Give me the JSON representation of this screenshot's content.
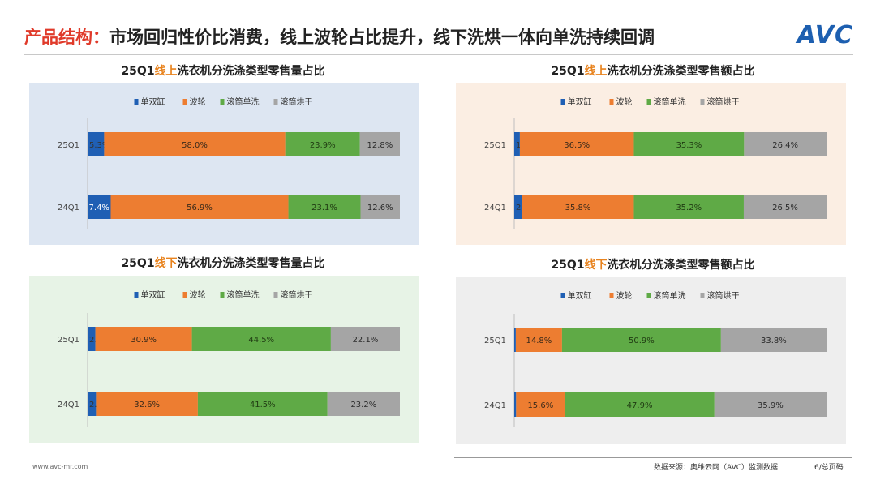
{
  "header": {
    "title_highlight": "产品结构：",
    "title_rest": "市场回归性价比消费，线上波轮占比提升，线下洗烘一体向单洗持续回调",
    "logo": "AVC"
  },
  "colors": {
    "单双缸": "#1f5fb4",
    "波轮": "#ed7d31",
    "滚筒单洗": "#5faa46",
    "滚筒烘干": "#a5a5a5",
    "panel_blue": "#dde6f2",
    "panel_peach": "#fbeee3",
    "panel_green": "#e7f3e6",
    "panel_gray": "#eeeeee"
  },
  "footer": {
    "website": "www.avc-mr.com",
    "source": "数据来源：奥维云网（AVC）监测数据",
    "page": "6/总页码"
  },
  "chart_data": [
    {
      "type": "bar",
      "orientation": "horizontal-stacked-100",
      "title_pre": "25Q1",
      "title_hl": "线上",
      "title_post": "洗衣机分洗涤类型零售量占比",
      "categories": [
        "25Q1",
        "24Q1"
      ],
      "legend": [
        "单双缸",
        "波轮",
        "滚筒单洗",
        "滚筒烘干"
      ],
      "series": [
        {
          "name": "单双缸",
          "values": [
            5.3,
            7.4
          ],
          "labels": [
            "5.3%",
            "7.4%"
          ]
        },
        {
          "name": "波轮",
          "values": [
            58.0,
            56.9
          ],
          "labels": [
            "58.0%",
            "56.9%"
          ]
        },
        {
          "name": "滚筒单洗",
          "values": [
            23.9,
            23.1
          ],
          "labels": [
            "23.9%",
            "23.1%"
          ]
        },
        {
          "name": "滚筒烘干",
          "values": [
            12.8,
            12.6
          ],
          "labels": [
            "12.8%",
            "12.6%"
          ]
        }
      ]
    },
    {
      "type": "bar",
      "orientation": "horizontal-stacked-100",
      "title_pre": "25Q1",
      "title_hl": "线上",
      "title_post": "洗衣机分洗涤类型零售额占比",
      "categories": [
        "25Q1",
        "24Q1"
      ],
      "legend": [
        "单双缸",
        "波轮",
        "滚筒单洗",
        "滚筒烘干"
      ],
      "series": [
        {
          "name": "单双缸",
          "values": [
            1.8,
            2.5
          ],
          "labels": [
            "1.8%",
            "2.5%"
          ]
        },
        {
          "name": "波轮",
          "values": [
            36.5,
            35.8
          ],
          "labels": [
            "36.5%",
            "35.8%"
          ]
        },
        {
          "name": "滚筒单洗",
          "values": [
            35.3,
            35.2
          ],
          "labels": [
            "35.3%",
            "35.2%"
          ]
        },
        {
          "name": "滚筒烘干",
          "values": [
            26.4,
            26.5
          ],
          "labels": [
            "26.4%",
            "26.5%"
          ]
        }
      ]
    },
    {
      "type": "bar",
      "orientation": "horizontal-stacked-100",
      "title_pre": "25Q1",
      "title_hl": "线下",
      "title_post": "洗衣机分洗涤类型零售量占比",
      "categories": [
        "25Q1",
        "24Q1"
      ],
      "legend": [
        "单双缸",
        "波轮",
        "滚筒单洗",
        "滚筒烘干"
      ],
      "series": [
        {
          "name": "单双缸",
          "values": [
            2.5,
            2.7
          ],
          "labels": [
            "2.5%",
            "2.7%"
          ]
        },
        {
          "name": "波轮",
          "values": [
            30.9,
            32.6
          ],
          "labels": [
            "30.9%",
            "32.6%"
          ]
        },
        {
          "name": "滚筒单洗",
          "values": [
            44.5,
            41.5
          ],
          "labels": [
            "44.5%",
            "41.5%"
          ]
        },
        {
          "name": "滚筒烘干",
          "values": [
            22.1,
            23.2
          ],
          "labels": [
            "22.1%",
            "23.2%"
          ]
        }
      ]
    },
    {
      "type": "bar",
      "orientation": "horizontal-stacked-100",
      "title_pre": "25Q1",
      "title_hl": "线下",
      "title_post": "洗衣机分洗涤类型零售额占比",
      "categories": [
        "25Q1",
        "24Q1"
      ],
      "legend": [
        "单双缸",
        "波轮",
        "滚筒单洗",
        "滚筒烘干"
      ],
      "series": [
        {
          "name": "单双缸",
          "values": [
            0.5,
            0.6
          ],
          "labels": [
            "0.5%",
            "0.6%"
          ]
        },
        {
          "name": "波轮",
          "values": [
            14.8,
            15.6
          ],
          "labels": [
            "14.8%",
            "15.6%"
          ]
        },
        {
          "name": "滚筒单洗",
          "values": [
            50.9,
            47.9
          ],
          "labels": [
            "50.9%",
            "47.9%"
          ]
        },
        {
          "name": "滚筒烘干",
          "values": [
            33.8,
            35.9
          ],
          "labels": [
            "33.8%",
            "35.9%"
          ]
        }
      ]
    }
  ]
}
